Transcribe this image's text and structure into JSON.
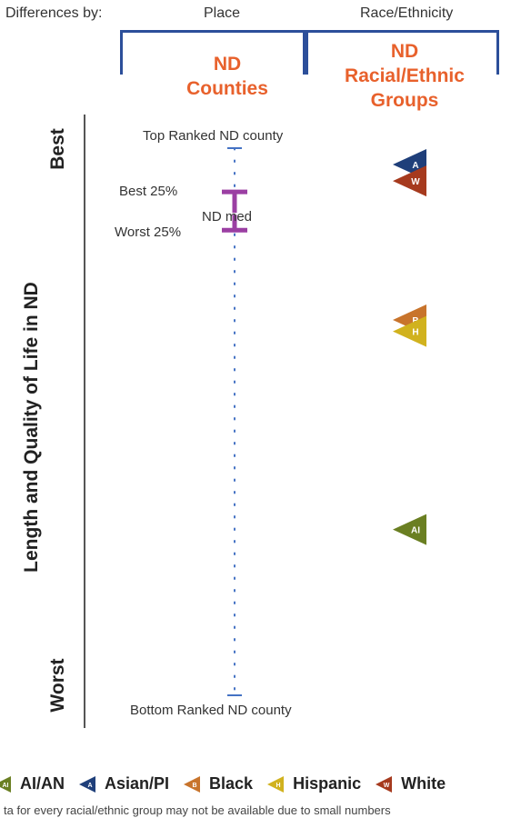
{
  "header": {
    "differences_by": "Differences by:",
    "place": "Place",
    "race_ethnicity": "Race/Ethnicity"
  },
  "groups": {
    "left_title_1": "ND",
    "left_title_2": "Counties",
    "right_title_1": "ND",
    "right_title_2": "Racial/Ethnic",
    "right_title_3": "Groups"
  },
  "axis": {
    "best": "Best",
    "worst": "Worst",
    "title": "Length and Quality of Life in ND"
  },
  "labels": {
    "top_county": "Top Ranked ND county",
    "best25": "Best 25%",
    "nd_median": "ND med",
    "worst25": "Worst 25%",
    "bottom_county": "Bottom Ranked ND county"
  },
  "chart_data": {
    "type": "scatter",
    "scale": "rank position (0 = Top Ranked ND county, 1 = Bottom Ranked ND county)",
    "county_markers": {
      "top": 0.0,
      "best25": 0.08,
      "median": 0.12,
      "worst25": 0.15,
      "bottom": 1.0
    },
    "groups": [
      {
        "name": "Asian/PI",
        "abbr": "A",
        "value": 0.03,
        "color": "#1f3f7a"
      },
      {
        "name": "White",
        "abbr": "W",
        "value": 0.06,
        "color": "#a63a1e"
      },
      {
        "name": "Black",
        "abbr": "B",
        "value": 0.314,
        "color": "#c8742c"
      },
      {
        "name": "Hispanic",
        "abbr": "H",
        "value": 0.335,
        "color": "#d1b21e"
      },
      {
        "name": "AI/AN",
        "abbr": "AI",
        "value": 0.697,
        "color": "#6a7f22"
      }
    ]
  },
  "legend": [
    {
      "name": "AI/AN",
      "abbr": "AI",
      "color": "#6a7f22"
    },
    {
      "name": "Asian/PI",
      "abbr": "A",
      "color": "#1f3f7a"
    },
    {
      "name": "Black",
      "abbr": "B",
      "color": "#c8742c"
    },
    {
      "name": "Hispanic",
      "abbr": "H",
      "color": "#d1b21e"
    },
    {
      "name": "White",
      "abbr": "W",
      "color": "#a63a1e"
    }
  ],
  "footnote": "ta for every racial/ethnic group may not be available due to small numbers",
  "colors": {
    "bracket": "#2c4f9a",
    "group_title": "#e8612c",
    "county_dots": "#4472c4",
    "quartile": "#9b3fa3"
  }
}
